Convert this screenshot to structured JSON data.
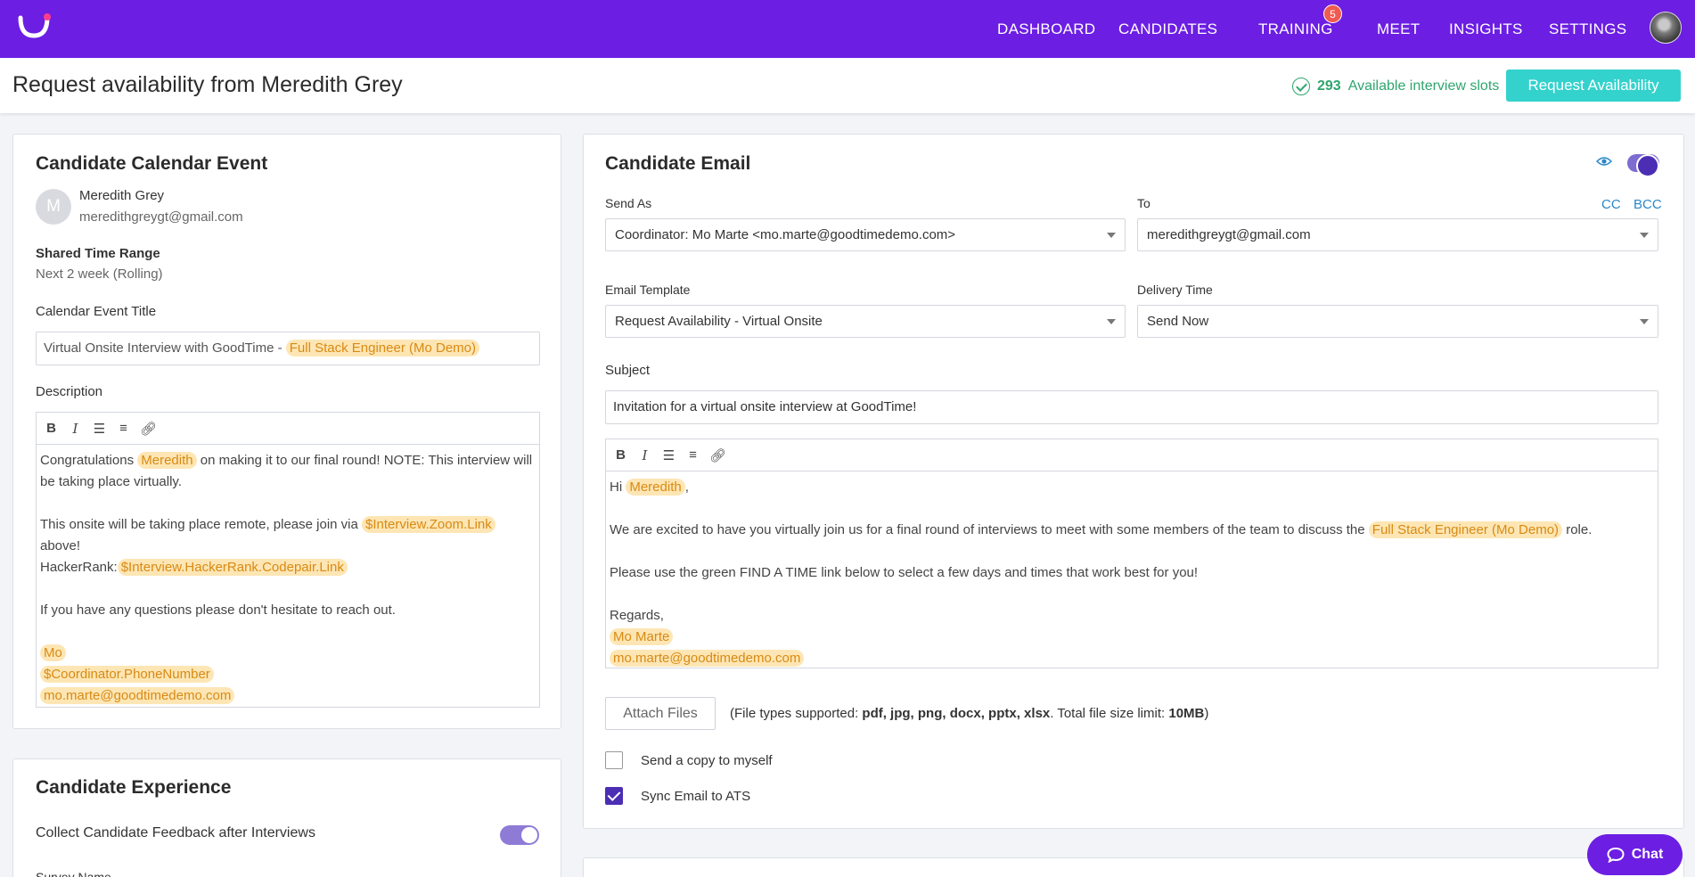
{
  "nav": {
    "items": [
      "DASHBOARD",
      "CANDIDATES",
      "TRAINING",
      "MEET",
      "INSIGHTS",
      "SETTINGS"
    ],
    "training_badge": "5"
  },
  "header": {
    "title": "Request availability from Meredith Grey",
    "slots_count": "293",
    "slots_label": "Available interview slots",
    "request_button": "Request Availability"
  },
  "calendar_event": {
    "title": "Candidate Calendar Event",
    "avatar_initial": "M",
    "candidate_name": "Meredith Grey",
    "candidate_email": "meredithgreygt@gmail.com",
    "time_range_label": "Shared Time Range",
    "time_range_value": "Next 2 week (Rolling)",
    "event_title_label": "Calendar Event Title",
    "event_title_prefix": "Virtual Onsite Interview with GoodTime - ",
    "event_title_token": "Full Stack Engineer (Mo Demo)",
    "description_label": "Description",
    "desc": {
      "p1_a": "Congratulations ",
      "p1_token": "Meredith",
      "p1_b": " on making it to our final round! NOTE: This interview will be taking place virtually.",
      "p2_a": "This onsite will be taking place remote, please join via ",
      "p2_token": "$Interview.Zoom.Link",
      "p2_b": " above!",
      "p3_a": "HackerRank:",
      "p3_token": "$Interview.HackerRank.Codepair.Link",
      "p4": "If you have any questions please don't hesitate to reach out.",
      "sig1": "Mo",
      "sig2": "$Coordinator.PhoneNumber",
      "sig3": "mo.marte@goodtimedemo.com"
    }
  },
  "experience": {
    "title": "Candidate Experience",
    "feedback_label": "Collect Candidate Feedback after Interviews",
    "survey_label": "Survey Name"
  },
  "email": {
    "title": "Candidate Email",
    "send_as_label": "Send As",
    "send_as_value": "Coordinator: Mo Marte <mo.marte@goodtimedemo.com>",
    "to_label": "To",
    "to_value": "meredithgreygt@gmail.com",
    "cc": "CC",
    "bcc": "BCC",
    "template_label": "Email Template",
    "template_value": "Request Availability - Virtual Onsite",
    "delivery_label": "Delivery Time",
    "delivery_value": "Send Now",
    "subject_label": "Subject",
    "subject_value": "Invitation for a virtual onsite interview at GoodTime!",
    "body": {
      "greet_a": "Hi ",
      "greet_token": "Meredith",
      "greet_b": ",",
      "p1_a": "We are excited to have you virtually join us for a final round of interviews to meet with some members of the team to discuss the ",
      "p1_token": "Full Stack Engineer (Mo Demo)",
      "p1_b": " role.",
      "p2": "Please use the green FIND A TIME link below to select a few days and times that work best for you!",
      "regards": "Regards,",
      "sig_name": "Mo Marte",
      "sig_email": "mo.marte@goodtimedemo.com"
    },
    "attach_button": "Attach Files",
    "file_note_a": "(File types supported: ",
    "file_types": "pdf, jpg, png, docx, pptx, xlsx",
    "file_note_b": ". Total file size limit: ",
    "file_limit": "10MB",
    "file_note_c": ")",
    "copy_label": "Send a copy to myself",
    "sync_label": "Sync Email to ATS"
  },
  "chat": {
    "label": "Chat"
  },
  "colors": {
    "brand": "#6c1ee3",
    "accent": "#34d2cd",
    "highlight": "#fde6b4"
  }
}
